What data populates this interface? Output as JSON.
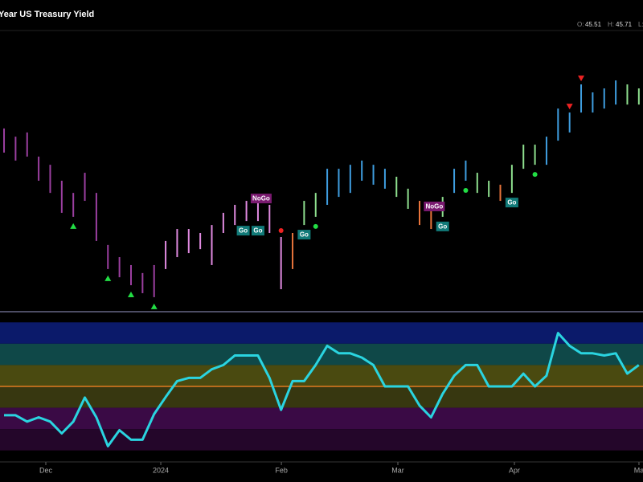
{
  "header": {
    "title": "Year US Treasury Yield",
    "ohlc": [
      {
        "label": "O:",
        "value": "45.51"
      },
      {
        "label": "H:",
        "value": "45.71"
      },
      {
        "label": "L:"
      }
    ]
  },
  "chart_data": [
    {
      "type": "ohlc",
      "high": [
        43.82,
        43.47,
        43.65,
        42.62,
        42.27,
        41.59,
        41.07,
        41.93,
        41.07,
        38.85,
        38.33,
        37.99,
        37.65,
        37.99,
        39.02,
        39.53,
        39.53,
        39.36,
        39.7,
        40.22,
        40.56,
        40.73,
        40.9,
        40.56,
        39.19,
        39.36,
        40.73,
        41.07,
        42.1,
        42.1,
        42.27,
        42.45,
        42.27,
        42.1,
        41.76,
        41.25,
        40.73,
        40.56,
        40.9,
        42.1,
        42.45,
        41.93,
        41.59,
        41.42,
        42.27,
        43.13,
        43.13,
        43.47,
        44.67,
        44.5,
        45.7,
        45.36,
        45.53,
        45.87,
        45.7,
        45.53
      ],
      "low": [
        42.79,
        42.45,
        42.62,
        41.59,
        41.07,
        40.22,
        40.05,
        40.73,
        39.02,
        37.82,
        37.47,
        37.13,
        36.79,
        36.62,
        37.82,
        38.33,
        38.5,
        38.67,
        37.99,
        39.36,
        39.7,
        39.87,
        39.87,
        39.36,
        36.96,
        37.82,
        39.7,
        40.05,
        40.56,
        40.9,
        41.07,
        41.59,
        41.42,
        41.25,
        40.9,
        40.39,
        39.7,
        39.53,
        40.05,
        41.07,
        41.59,
        41.07,
        40.9,
        40.73,
        41.07,
        42.1,
        42.27,
        42.27,
        43.3,
        43.65,
        44.5,
        44.5,
        44.67,
        44.84,
        44.84,
        44.84
      ],
      "colors": [
        "#9b3fa0",
        "#9b3fa0",
        "#9b3fa0",
        "#9b3fa0",
        "#9b3fa0",
        "#9b3fa0",
        "#9b3fa0",
        "#9b3fa0",
        "#9b3fa0",
        "#9b3fa0",
        "#9b3fa0",
        "#9b3fa0",
        "#9b3fa0",
        "#9b3fa0",
        "#e08ae0",
        "#e08ae0",
        "#e08ae0",
        "#e08ae0",
        "#e08ae0",
        "#e08ae0",
        "#e08ae0",
        "#e08ae0",
        "#e08ae0",
        "#e08ae0",
        "#e08ae0",
        "#e8743b",
        "#8fe08f",
        "#8fe08f",
        "#3f9ee0",
        "#3f9ee0",
        "#3f9ee0",
        "#3f9ee0",
        "#3f9ee0",
        "#3f9ee0",
        "#8fe08f",
        "#8fe08f",
        "#e8743b",
        "#e8743b",
        "#8fe08f",
        "#3f9ee0",
        "#3f9ee0",
        "#8fe08f",
        "#8fe08f",
        "#e8743b",
        "#8fe08f",
        "#8fe08f",
        "#8fe08f",
        "#3f9ee0",
        "#3f9ee0",
        "#3f9ee0",
        "#3f9ee0",
        "#3f9ee0",
        "#3f9ee0",
        "#3f9ee0",
        "#8fe08f",
        "#8fe08f"
      ],
      "ylim": [
        36,
        48
      ],
      "xlim": [
        -0.35,
        55.36
      ],
      "xticks": [
        {
          "value": 3.62,
          "label": "Dec"
        },
        {
          "value": 13.58,
          "label": "2024"
        },
        {
          "value": 24.03,
          "label": "Feb"
        },
        {
          "value": 34.12,
          "label": "Mar"
        },
        {
          "value": 44.22,
          "label": "Apr"
        },
        {
          "value": 55.01,
          "label": "Ma"
        }
      ],
      "signals": [
        {
          "label": "Go",
          "x": 21
        },
        {
          "label": "NoGo",
          "x": 22
        },
        {
          "label": "Go",
          "x": 22
        },
        {
          "label": "Go",
          "x": 26
        },
        {
          "label": "NoGo",
          "x": 37
        },
        {
          "label": "Go",
          "x": 38
        },
        {
          "label": "Go",
          "x": 44
        }
      ],
      "markers": [
        {
          "x": 6,
          "shape": "up",
          "color": "#22dd44"
        },
        {
          "x": 9,
          "shape": "up",
          "color": "#22dd44"
        },
        {
          "x": 11,
          "shape": "up",
          "color": "#22dd44"
        },
        {
          "x": 13,
          "shape": "up",
          "color": "#22dd44"
        },
        {
          "x": 49,
          "shape": "down",
          "color": "#ee2222"
        },
        {
          "x": 50,
          "shape": "down",
          "color": "#ee2222"
        },
        {
          "x": 24,
          "shape": "dot",
          "color": "#ee2222"
        },
        {
          "x": 27,
          "shape": "dot",
          "color": "#22dd44"
        },
        {
          "x": 40,
          "shape": "dot",
          "color": "#22dd44"
        },
        {
          "x": 46,
          "shape": "dot",
          "color": "#22dd44"
        }
      ]
    },
    {
      "type": "line",
      "color": "#2ad4e0",
      "values": [
        -2.7,
        -2.7,
        -3.3,
        -2.9,
        -3.3,
        -4.4,
        -3.3,
        -1.05,
        -2.9,
        -5.6,
        -4.1,
        -5.0,
        -5.0,
        -2.6,
        -1.0,
        0.5,
        0.8,
        0.8,
        1.6,
        2.0,
        2.9,
        2.9,
        2.9,
        0.8,
        -2.2,
        0.5,
        0.5,
        2.0,
        3.8,
        3.1,
        3.1,
        2.7,
        2.0,
        0,
        0,
        0,
        -1.8,
        -2.9,
        -0.7,
        1.0,
        2.0,
        2.0,
        0,
        0,
        0,
        1.2,
        0,
        1.0,
        5.0,
        3.8,
        3.1,
        3.1,
        2.9,
        3.1,
        1.2,
        2.0
      ],
      "ylim": [
        -7,
        7
      ],
      "bands": [
        {
          "from": 4,
          "to": 6,
          "color": "#0b1a6a"
        },
        {
          "from": 2,
          "to": 4,
          "color": "#0f4848"
        },
        {
          "from": 0,
          "to": 2,
          "color": "#4a4a10"
        },
        {
          "from": -2,
          "to": 0,
          "color": "#373710"
        },
        {
          "from": -4,
          "to": -2,
          "color": "#3a0a45"
        },
        {
          "from": -6,
          "to": -4,
          "color": "#24062a"
        }
      ],
      "ref_line": {
        "value": 0,
        "color": "#e07a20"
      }
    }
  ]
}
